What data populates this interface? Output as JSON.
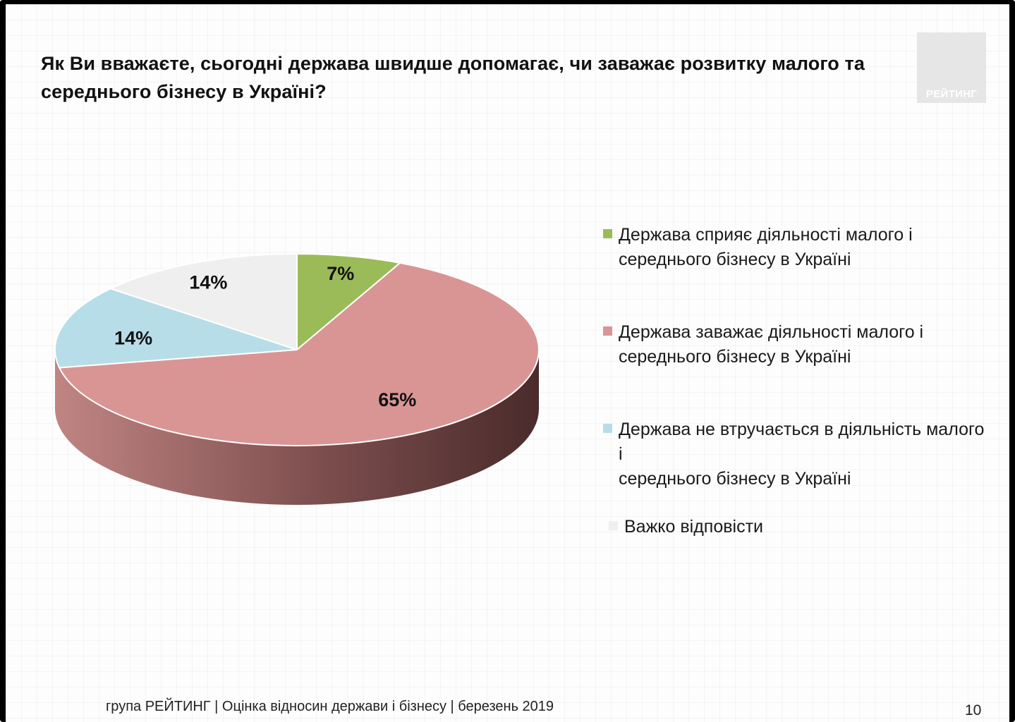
{
  "title_line1": "Як Ви вважаєте, сьогодні держава швидше допомагає, чи заважає розвитку малого та",
  "title_line2": "середнього бізнесу в Україні?",
  "logo": {
    "text": "РЕЙТИНГ"
  },
  "footer": "група РЕЙТИНГ | Оцінка відносин держави і бізнесу  | березень  2019",
  "page_number": "10",
  "chart_data": {
    "type": "pie",
    "title": "Як Ви вважаєте, сьогодні держава швидше допомагає, чи заважає розвитку малого та середнього бізнесу в Україні?",
    "legend_position": "right",
    "three_d": true,
    "slices": [
      {
        "label_line1": "Держава сприяє діяльності малого і",
        "label_line2": "середнього бізнесу в Україні",
        "value": 7,
        "value_label": "7%",
        "color": "#9bbb59"
      },
      {
        "label_line1": "Держава заважає діяльності малого і",
        "label_line2": "середнього бізнесу в Україні",
        "value": 65,
        "value_label": "65%",
        "color": "#d99594",
        "side_light": "#c08583",
        "side_dark": "#4a2b2b"
      },
      {
        "label_line1": "Держава не втручається в діяльність малого і",
        "label_line2": "середнього бізнесу в Україні",
        "value": 14,
        "value_label": "14%",
        "color": "#b7dde8"
      },
      {
        "label_line1": "Важко відповісти",
        "label_line2": "",
        "value": 14,
        "value_label": "14%",
        "color": "#efefef"
      }
    ]
  }
}
